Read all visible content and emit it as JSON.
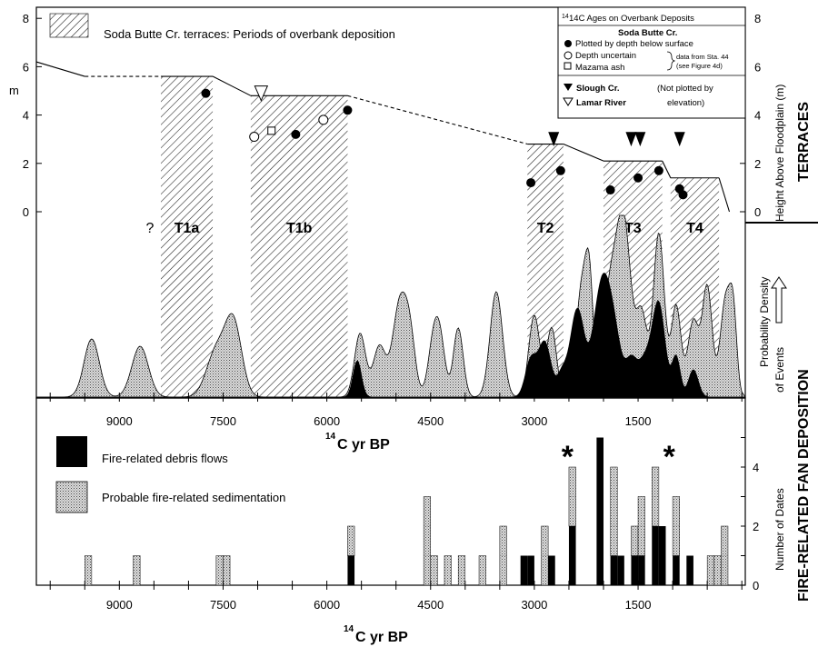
{
  "chart_data": [
    {
      "type": "area",
      "panel": "terraces",
      "axis_x_direction": "decreasing",
      "xlim": [
        10200,
        -50
      ],
      "left_axis": {
        "label": "m",
        "ticks": [
          0,
          2,
          4,
          6,
          8
        ],
        "ylim": [
          -0.3,
          8.6
        ]
      },
      "right_axis": {
        "label": "Height Above Floodplain (m)",
        "ticks": [
          0,
          2,
          4,
          6,
          8
        ]
      },
      "side_title": "TERRACES",
      "legend_hatch": "Soda Butte Cr. terraces: Periods of overbank deposition",
      "terraces": [
        {
          "label": "T1a",
          "x0": 8400,
          "x1": 7650,
          "top": 5.6
        },
        {
          "label": "T1b",
          "x0": 7100,
          "x1": 5700,
          "top": 4.8
        },
        {
          "label": "T2",
          "x0": 3100,
          "x1": 2580,
          "top": 2.8
        },
        {
          "label": "T3",
          "x0": 2000,
          "x1": 1150,
          "top": 2.1
        },
        {
          "label": "T4",
          "x0": 1030,
          "x1": 330,
          "top": 1.4
        }
      ],
      "terrace_question_mark": "?",
      "surface_profile": [
        [
          10200,
          6.2
        ],
        [
          9500,
          5.6
        ],
        [
          8400,
          5.6
        ],
        [
          7650,
          5.6
        ],
        [
          7100,
          4.8
        ],
        [
          5700,
          4.8
        ],
        [
          3100,
          2.8
        ],
        [
          2580,
          2.8
        ],
        [
          2000,
          2.1
        ],
        [
          1150,
          2.1
        ],
        [
          1030,
          1.4
        ],
        [
          330,
          1.4
        ],
        [
          180,
          0
        ]
      ],
      "age_key": {
        "title": "14C Ages on Overbank Deposits",
        "soda_butte_heading": "Soda Butte Cr.",
        "plotted_by_depth": "Plotted by depth below surface",
        "depth_uncertain": "Depth uncertain",
        "mazama_ash": "Mazama ash",
        "note_line1": "data from Sta. 44",
        "note_line2": "(see Figure 4d)",
        "slough": "Slough Cr.",
        "not_plotted_line1": "(Not plotted by",
        "not_plotted_line2": "elevation)",
        "lamar": "Lamar River"
      },
      "soda_butte_ages_plotted": [
        [
          7750,
          4.9
        ],
        [
          6450,
          3.2
        ],
        [
          5700,
          4.2
        ],
        [
          3050,
          1.2
        ],
        [
          2620,
          1.7
        ],
        [
          1900,
          0.9
        ],
        [
          1500,
          1.4
        ],
        [
          1200,
          1.7
        ],
        [
          900,
          0.95
        ],
        [
          850,
          0.7
        ]
      ],
      "soda_butte_ages_depth_uncertain": [
        [
          7050,
          3.1
        ],
        [
          6050,
          3.8
        ]
      ],
      "mazama_ash": [
        [
          6800,
          3.35
        ]
      ],
      "slough_cr_ages": [
        [
          2720
        ],
        [
          1600
        ],
        [
          1470
        ],
        [
          900
        ]
      ],
      "lamar_river_ages": [
        [
          6950
        ],
        [
          1850
        ],
        [
          1020
        ]
      ]
    },
    {
      "type": "area",
      "panel": "fan deposition probability",
      "right_axis_label_line1": "Probability Density",
      "right_axis_label_line2": "of Events",
      "side_title": "FIRE-RELATED FAN DEPOSITION",
      "x_ticks": [
        9000,
        7500,
        6000,
        4500,
        3000,
        1500
      ],
      "xlabel_sup": "14",
      "xlabel": "C yr BP",
      "series": [
        {
          "kind": "probable",
          "peaks": [
            [
              9400,
              110,
              0.32
            ],
            [
              8700,
              120,
              0.28
            ],
            [
              7600,
              140,
              0.25
            ],
            [
              7350,
              120,
              0.4
            ],
            [
              5520,
              80,
              0.35
            ],
            [
              5240,
              90,
              0.28
            ],
            [
              4950,
              100,
              0.5
            ],
            [
              4800,
              80,
              0.3
            ],
            [
              4450,
              80,
              0.33
            ],
            [
              4350,
              70,
              0.22
            ],
            [
              4100,
              70,
              0.38
            ],
            [
              3550,
              90,
              0.58
            ],
            [
              3000,
              80,
              0.45
            ],
            [
              2750,
              70,
              0.38
            ],
            [
              2300,
              90,
              0.65
            ],
            [
              2200,
              50,
              0.4
            ],
            [
              1900,
              110,
              0.6
            ],
            [
              1700,
              100,
              0.9
            ],
            [
              1450,
              80,
              0.45
            ],
            [
              1200,
              80,
              0.9
            ],
            [
              950,
              70,
              0.5
            ],
            [
              700,
              80,
              0.42
            ],
            [
              500,
              70,
              0.6
            ],
            [
              230,
              80,
              0.55
            ],
            [
              120,
              50,
              0.35
            ]
          ]
        },
        {
          "kind": "fire",
          "peaks": [
            [
              5560,
              60,
              0.2
            ],
            [
              3050,
              80,
              0.2
            ],
            [
              2850,
              90,
              0.3
            ],
            [
              2600,
              70,
              0.12
            ],
            [
              2380,
              100,
              0.48
            ],
            [
              2030,
              120,
              0.58
            ],
            [
              1850,
              110,
              0.3
            ],
            [
              1600,
              80,
              0.18
            ],
            [
              1400,
              100,
              0.2
            ],
            [
              1200,
              90,
              0.5
            ],
            [
              950,
              60,
              0.22
            ],
            [
              700,
              70,
              0.15
            ]
          ]
        }
      ]
    },
    {
      "type": "bar",
      "panel": "number of dates",
      "x_ticks": [
        9000,
        7500,
        6000,
        4500,
        3000,
        1500
      ],
      "xlabel_sup": "14",
      "xlabel": "C yr BP",
      "ylabel": "Number of Dates",
      "y_ticks": [
        0,
        2,
        4
      ],
      "ylim": [
        0,
        5.6
      ],
      "legend": [
        {
          "kind": "fire",
          "label": "Fire-related debris flows"
        },
        {
          "kind": "probable",
          "label": "Probable fire-related sedimentation"
        }
      ],
      "asterisk": "*",
      "asterisk_x": [
        2520,
        1050
      ],
      "bin_width": 100,
      "bins": [
        [
          9450,
          0,
          1
        ],
        [
          8750,
          0,
          1
        ],
        [
          7550,
          0,
          1
        ],
        [
          7450,
          0,
          1
        ],
        [
          5650,
          1,
          1
        ],
        [
          4550,
          0,
          3
        ],
        [
          4450,
          0,
          1
        ],
        [
          4250,
          0,
          1
        ],
        [
          4050,
          0,
          1
        ],
        [
          3750,
          0,
          1
        ],
        [
          3450,
          0,
          2
        ],
        [
          3150,
          1,
          0
        ],
        [
          3050,
          1,
          0
        ],
        [
          2850,
          0,
          2
        ],
        [
          2750,
          1,
          0
        ],
        [
          2450,
          2,
          2
        ],
        [
          2050,
          5,
          0
        ],
        [
          1850,
          1,
          3
        ],
        [
          1750,
          1,
          0
        ],
        [
          1550,
          1,
          1
        ],
        [
          1450,
          1,
          2
        ],
        [
          1250,
          2,
          2
        ],
        [
          1150,
          2,
          0
        ],
        [
          950,
          1,
          2
        ],
        [
          750,
          1,
          0
        ],
        [
          450,
          0,
          1
        ],
        [
          350,
          0,
          1
        ],
        [
          250,
          0,
          2
        ]
      ]
    }
  ]
}
